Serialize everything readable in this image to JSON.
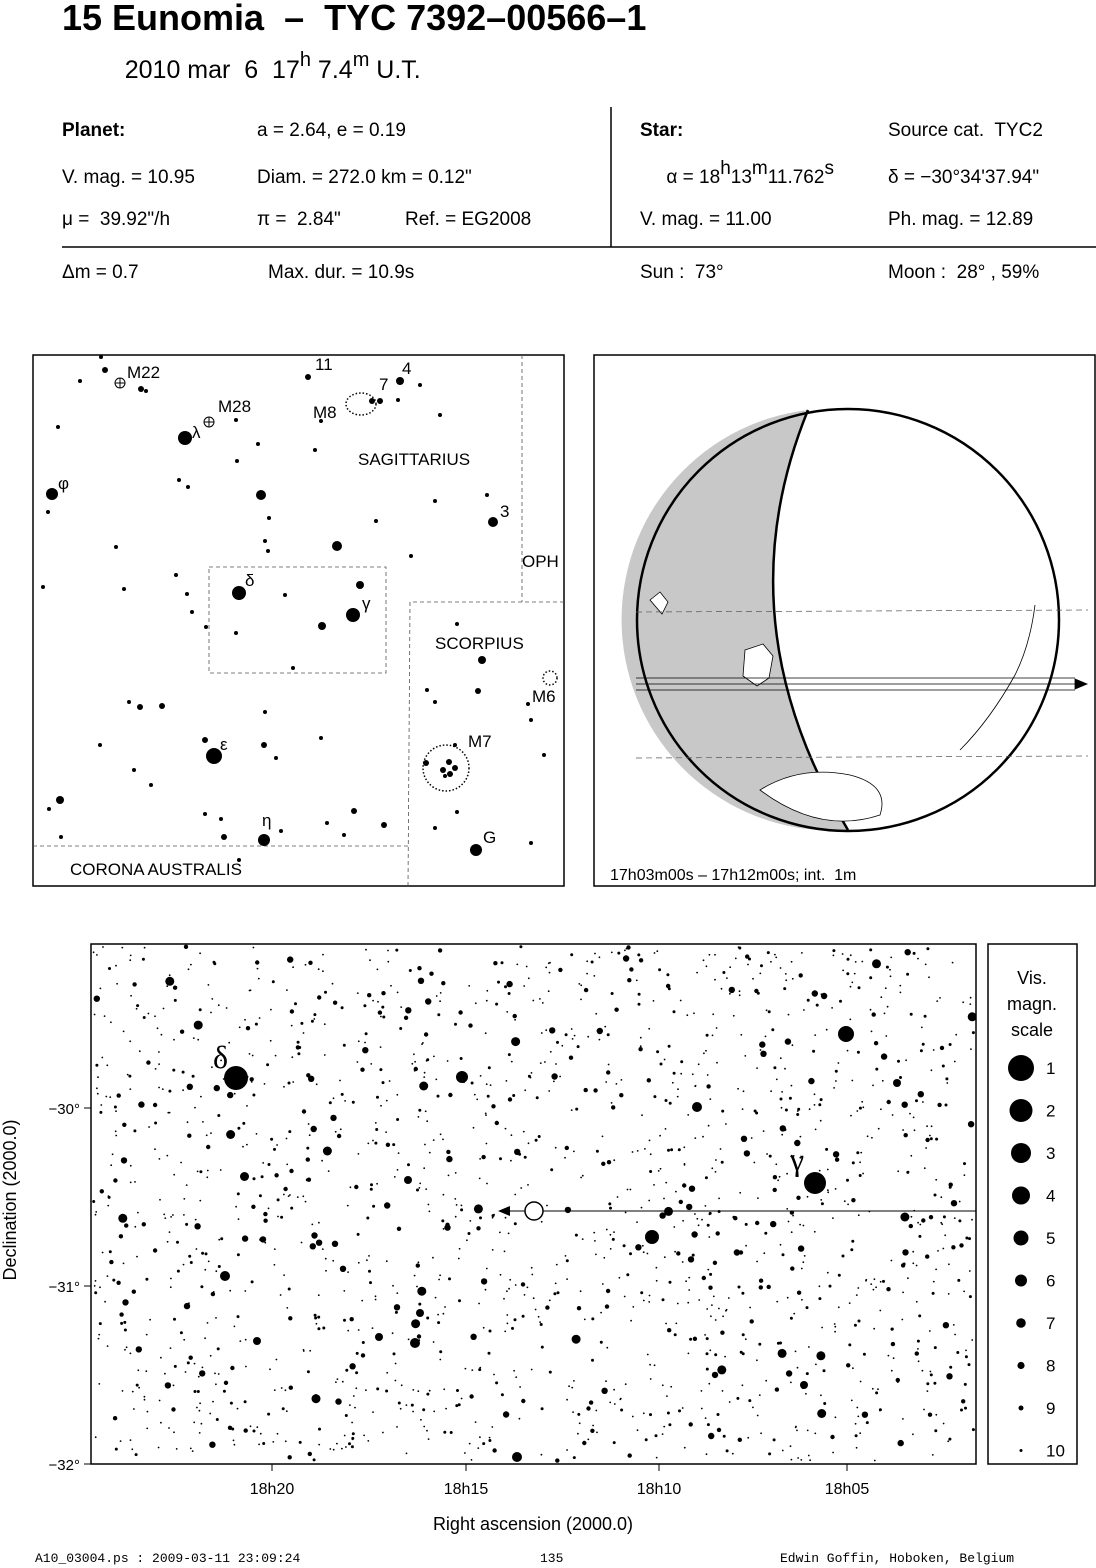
{
  "header": {
    "title": "15 Eunomia  –  TYC 7392–00566–1",
    "date": [
      "2010 mar  6  17",
      "h",
      " 7.4",
      "m",
      " U.T."
    ]
  },
  "info": {
    "planet_label": "Planet:",
    "orbit": "a = 2.64, e = 0.19",
    "vmag": "V. mag. = 10.95",
    "diam": "Diam. = 272.0 km = 0.12\"",
    "mu": "μ =  39.92\"/h",
    "pi": "π =  2.84\"",
    "ref": "Ref. = EG2008",
    "star_label": "Star:",
    "source": "Source cat.  TYC2",
    "alpha": [
      "α = 18",
      "h",
      "13",
      "m",
      "11.762",
      "s"
    ],
    "delta": "δ = −30°34'37.94\"",
    "star_vmag": "V. mag. = 11.00",
    "phmag": "Ph. mag. = 12.89",
    "dm": "Δm = 0.7",
    "maxdur": "Max. dur. = 10.9s",
    "sun": "Sun :  73°",
    "moon": "Moon :  28° , 59%"
  },
  "finder": {
    "labels": [
      "M22",
      "M28",
      "11",
      "4",
      "7",
      "M8",
      "SAGITTARIUS",
      "φ",
      "λ",
      "3",
      "OPH",
      "δ",
      "γ",
      "SCORPIUS",
      "M6",
      "M7",
      "ε",
      "η",
      "G",
      "CORONA AUSTRALIS"
    ]
  },
  "globe": {
    "caption": "17h03m00s – 17h12m00s; int.  1m"
  },
  "starchart": {
    "y_ticks": [
      "−30°",
      "−31°",
      "−32°"
    ],
    "x_ticks": [
      "18h20",
      "18h15",
      "18h10",
      "18h05"
    ],
    "x_title": "Right ascension (2000.0)",
    "y_title": "Declination (2000.0)",
    "star_labels": [
      "δ",
      "γ"
    ],
    "scale_title": [
      "Vis.",
      "magn.",
      "scale"
    ],
    "scale": [
      "1",
      "2",
      "3",
      "4",
      "5",
      "6",
      "7",
      "8",
      "9",
      "10"
    ]
  },
  "footer": {
    "file": "A10_03004.ps : 2009-03-11 23:09:24",
    "page": "135",
    "author": "Edwin Goffin, Hoboken, Belgium"
  }
}
